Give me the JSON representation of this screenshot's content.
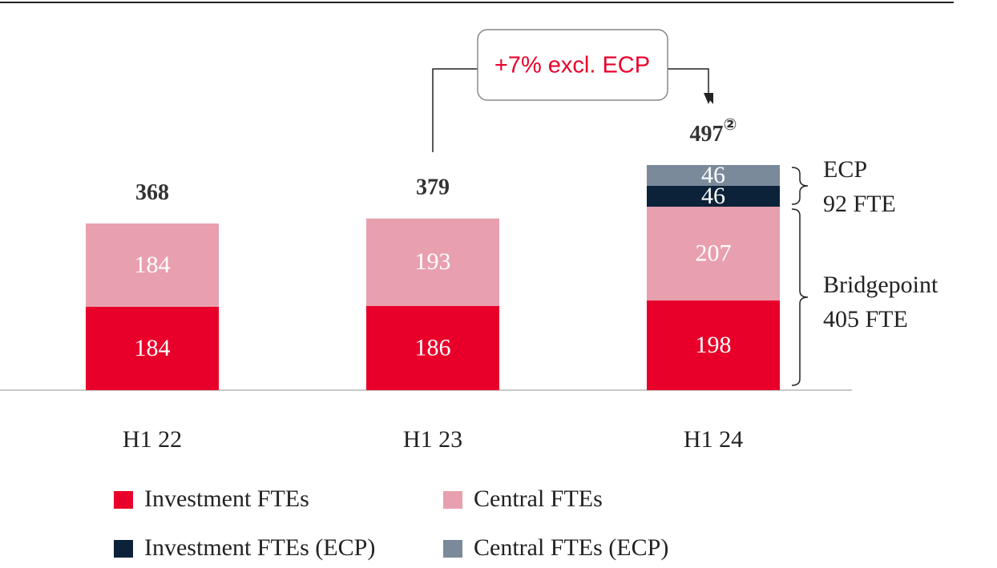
{
  "chart_data": {
    "type": "stacked_bar",
    "categories": [
      "H1 22",
      "H1 23",
      "H1 24"
    ],
    "series": [
      {
        "name": "Investment FTEs",
        "color": "#e8002a",
        "values": [
          184,
          186,
          198
        ]
      },
      {
        "name": "Central FTEs",
        "color": "#e8a0ae",
        "values": [
          184,
          193,
          207
        ]
      },
      {
        "name": "Investment FTEs (ECP)",
        "color": "#0b2239",
        "values": [
          null,
          null,
          46
        ]
      },
      {
        "name": "Central FTEs (ECP)",
        "color": "#7a8a9a",
        "values": [
          null,
          null,
          46
        ]
      }
    ],
    "totals": [
      368,
      379,
      497
    ],
    "footnote_marker": "②",
    "annotations": {
      "growth": "+7% excl. ECP",
      "ecp": [
        "ECP",
        "92 FTE"
      ],
      "bridgepoint": [
        "Bridgepoint",
        "405 FTE"
      ]
    },
    "label_color": "#ffffff",
    "annotation_color": "#e8002a"
  }
}
